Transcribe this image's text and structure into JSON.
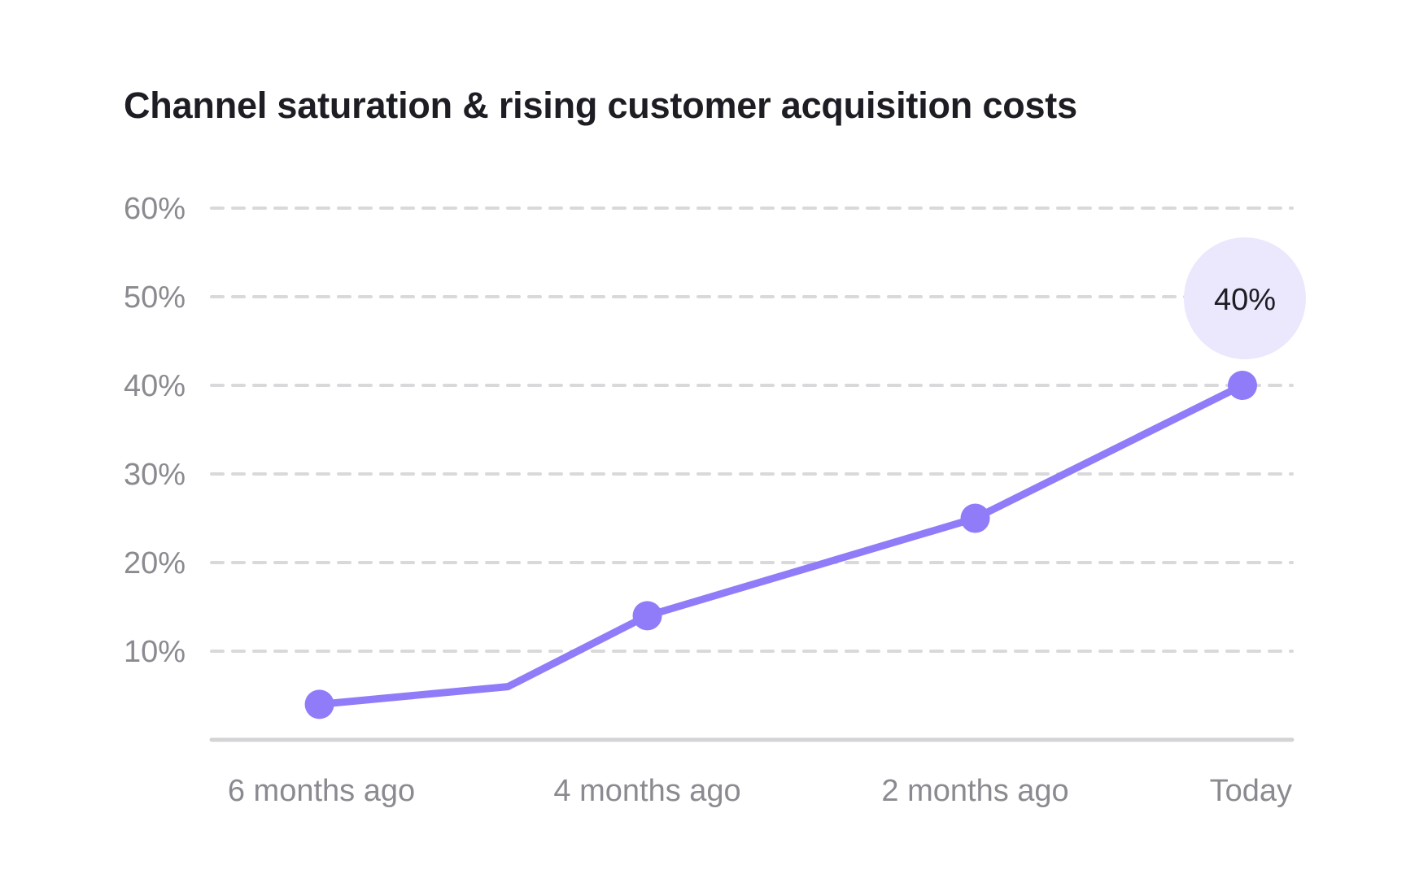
{
  "chart_data": {
    "type": "line",
    "title": "Channel saturation & rising customer acquisition costs",
    "xlabel": "",
    "ylabel": "",
    "x_ticks": [
      "6 months ago",
      "4 months ago",
      "2 months ago",
      "Today"
    ],
    "y_ticks": [
      "10%",
      "20%",
      "30%",
      "40%",
      "50%",
      "60%"
    ],
    "ylim": [
      0,
      60
    ],
    "y_unit": "%",
    "grid": "horizontal dashed",
    "x": [
      6,
      4.85,
      4,
      2,
      0.37
    ],
    "values": [
      4,
      6,
      14,
      25,
      40
    ],
    "markers": [
      true,
      false,
      true,
      true,
      true
    ],
    "callout": {
      "label": "40%",
      "point": "last"
    },
    "colors": {
      "line": "#907cf8",
      "callout_fill": "#ebe7fd",
      "grid": "#d9d9dc",
      "axis": "#d4d4d6",
      "tick_text": "#8a8a90",
      "title_text": "#1d1d24"
    }
  }
}
